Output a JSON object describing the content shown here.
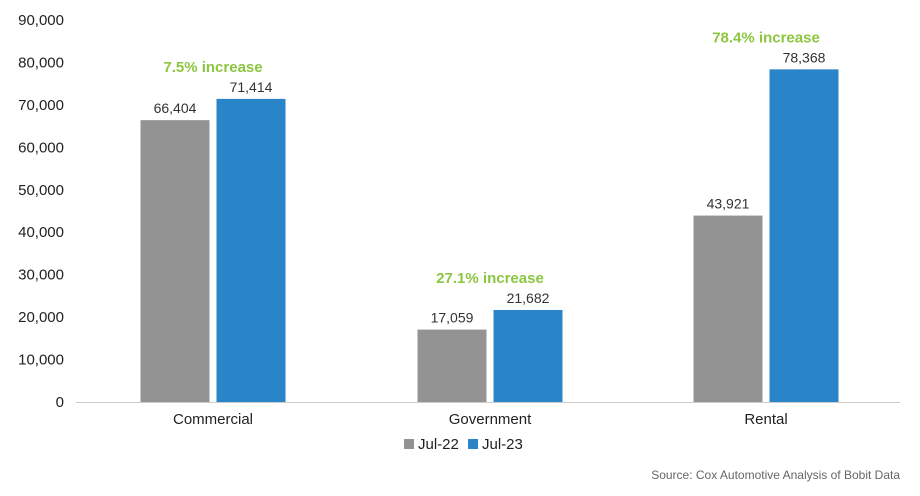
{
  "colors": {
    "jul22": "#939393",
    "jul23": "#2a84c8",
    "callout": "#8cc63f",
    "axis": "#cccccc"
  },
  "chart_data": {
    "type": "bar",
    "categories": [
      "Commercial",
      "Government",
      "Rental"
    ],
    "series": [
      {
        "name": "Jul-22",
        "values": [
          66404,
          17059,
          43921
        ],
        "labels": [
          "66,404",
          "17,059",
          "43,921"
        ]
      },
      {
        "name": "Jul-23",
        "values": [
          71414,
          21682,
          78368
        ],
        "labels": [
          "71,414",
          "21,682",
          "78,368"
        ]
      }
    ],
    "ylim": [
      0,
      90000
    ],
    "yticks": [
      0,
      10000,
      20000,
      30000,
      40000,
      50000,
      60000,
      70000,
      80000,
      90000
    ],
    "ytick_labels": [
      "0",
      "10,000",
      "20,000",
      "30,000",
      "40,000",
      "50,000",
      "60,000",
      "70,000",
      "80,000",
      "90,000"
    ],
    "annotations": [
      "7.5% increase",
      "27.1% increase",
      "78.4% increase"
    ],
    "grid": false,
    "legend": "bottom-center",
    "source": "Source: Cox Automotive Analysis of Bobit Data"
  }
}
